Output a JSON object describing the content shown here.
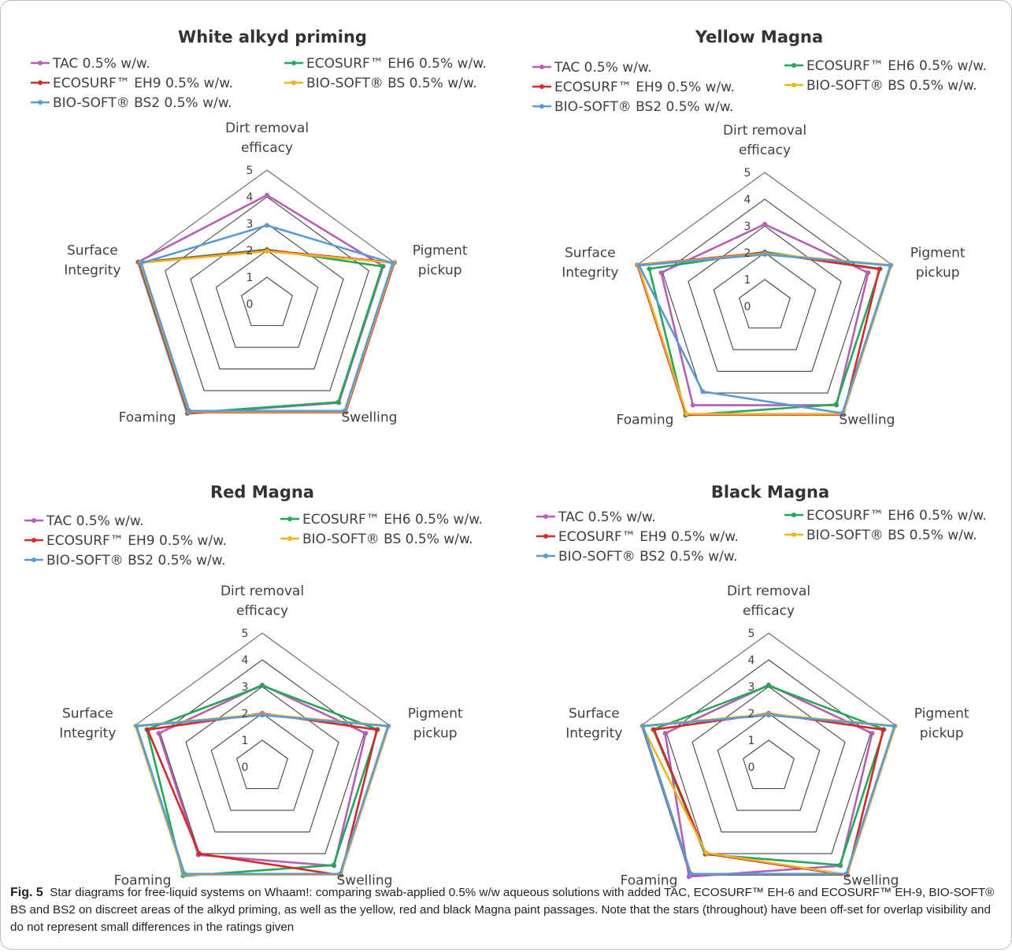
{
  "chart_data": [
    {
      "type": "radar",
      "title": "White alkyd priming",
      "axes": [
        "Dirt removal efficacy",
        "Pigment pickup",
        "Swelling",
        "Foaming",
        "Surface Integrity"
      ],
      "rlim": [
        0,
        5
      ],
      "ticks": [
        "0",
        "1",
        "2",
        "3",
        "4",
        "5"
      ],
      "series": [
        {
          "name": "TAC 0.5% w/w.",
          "color": "#b55fb5",
          "values": [
            4,
            4.5,
            4.5,
            5,
            5
          ]
        },
        {
          "name": "ECOSURF™ EH6 0.5% w/w.",
          "color": "#23a85a",
          "values": [
            2,
            4.5,
            4.5,
            5,
            5
          ]
        },
        {
          "name": "ECOSURF™ EH9 0.5% w/w.",
          "color": "#d42a2a",
          "values": [
            2,
            5,
            5,
            5,
            5
          ]
        },
        {
          "name": "BIO-SOFT® BS 0.5% w/w.",
          "color": "#f0b323",
          "values": [
            2,
            5,
            5,
            5,
            5
          ]
        },
        {
          "name": "BIO-SOFT® BS2 0.5% w/w.",
          "color": "#5b9bd5",
          "values": [
            3,
            5,
            5,
            5,
            5
          ]
        }
      ]
    },
    {
      "type": "radar",
      "title": "Yellow Magna",
      "axes": [
        "Dirt removal efficacy",
        "Pigment pickup",
        "Swelling",
        "Foaming",
        "Surface Integrity"
      ],
      "rlim": [
        0,
        5
      ],
      "ticks": [
        "0",
        "1",
        "2",
        "3",
        "4",
        "5"
      ],
      "series": [
        {
          "name": "TAC 0.5% w/w.",
          "color": "#b55fb5",
          "values": [
            3,
            4,
            4.5,
            4.5,
            4
          ]
        },
        {
          "name": "ECOSURF™ EH6 0.5% w/w.",
          "color": "#23a85a",
          "values": [
            2,
            4.5,
            4.5,
            5,
            4.5
          ]
        },
        {
          "name": "ECOSURF™ EH9 0.5% w/w.",
          "color": "#d42a2a",
          "values": [
            2,
            4.5,
            5,
            5,
            5
          ]
        },
        {
          "name": "BIO-SOFT® BS 0.5% w/w.",
          "color": "#f0b323",
          "values": [
            2,
            5,
            5,
            5,
            5
          ]
        },
        {
          "name": "BIO-SOFT® BS2 0.5% w/w.",
          "color": "#5b9bd5",
          "values": [
            2,
            5,
            5,
            4,
            5
          ]
        }
      ]
    },
    {
      "type": "radar",
      "title": "Red Magna",
      "axes": [
        "Dirt removal efficacy",
        "Pigment pickup",
        "Swelling",
        "Foaming",
        "Surface Integrity"
      ],
      "rlim": [
        0,
        5
      ],
      "ticks": [
        "0",
        "1",
        "2",
        "3",
        "4",
        "5"
      ],
      "series": [
        {
          "name": "TAC 0.5% w/w.",
          "color": "#b55fb5",
          "values": [
            3,
            4,
            4.5,
            4,
            4
          ]
        },
        {
          "name": "ECOSURF™ EH6 0.5% w/w.",
          "color": "#23a85a",
          "values": [
            3,
            4.5,
            4.5,
            5,
            4.5
          ]
        },
        {
          "name": "ECOSURF™ EH9 0.5% w/w.",
          "color": "#d42a2a",
          "values": [
            2,
            4.5,
            5,
            4,
            4.5
          ]
        },
        {
          "name": "BIO-SOFT® BS 0.5% w/w.",
          "color": "#f0b323",
          "values": [
            2,
            5,
            5,
            5,
            5
          ]
        },
        {
          "name": "BIO-SOFT® BS2 0.5% w/w.",
          "color": "#5b9bd5",
          "values": [
            2,
            5,
            5,
            5,
            5
          ]
        }
      ]
    },
    {
      "type": "radar",
      "title": "Black Magna",
      "axes": [
        "Dirt removal efficacy",
        "Pigment pickup",
        "Swelling",
        "Foaming",
        "Surface Integrity"
      ],
      "rlim": [
        0,
        5
      ],
      "ticks": [
        "0",
        "1",
        "2",
        "3",
        "4",
        "5"
      ],
      "series": [
        {
          "name": "TAC 0.5% w/w.",
          "color": "#b55fb5",
          "values": [
            3,
            4,
            4.5,
            5,
            4
          ]
        },
        {
          "name": "ECOSURF™ EH6 0.5% w/w.",
          "color": "#23a85a",
          "values": [
            3,
            4.5,
            4.5,
            4,
            4.5
          ]
        },
        {
          "name": "ECOSURF™ EH9 0.5% w/w.",
          "color": "#d42a2a",
          "values": [
            2,
            4.5,
            5,
            4,
            4.5
          ]
        },
        {
          "name": "BIO-SOFT® BS 0.5% w/w.",
          "color": "#f0b323",
          "values": [
            2,
            5,
            5,
            4,
            5
          ]
        },
        {
          "name": "BIO-SOFT® BS2 0.5% w/w.",
          "color": "#5b9bd5",
          "values": [
            2,
            5,
            5,
            5,
            5
          ]
        }
      ]
    }
  ],
  "caption": {
    "label": "Fig. 5",
    "text": "Star diagrams for free-liquid systems on Whaam!: comparing swab-applied 0.5% w/w aqueous solutions with added TAC, ECOSURF™ EH-6 and ECOSURF™ EH-9, BIO-SOFT® BS and BS2 on discreet areas of the alkyd priming, as well as the yellow, red and black Magna paint passages. Note that the stars (throughout) have been off-set for overlap visibility and do not represent small differences in the ratings given"
  }
}
